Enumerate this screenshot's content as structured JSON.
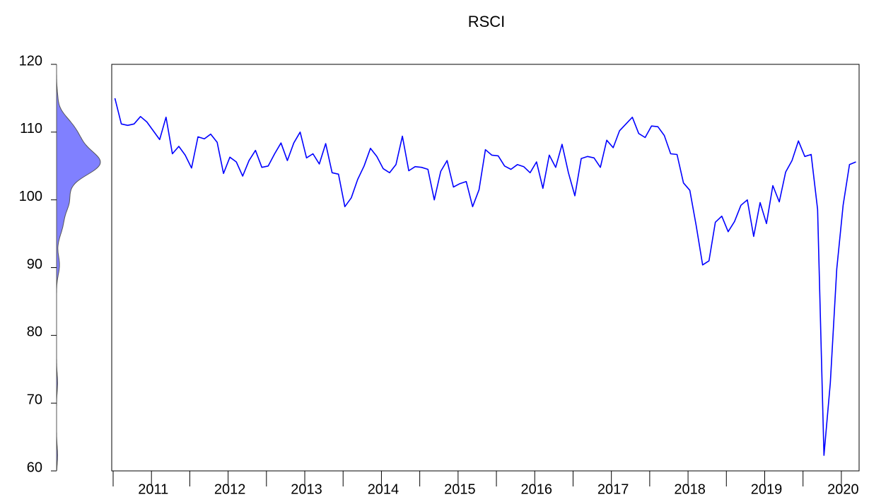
{
  "chart_data": {
    "type": "line",
    "title": "RSCI",
    "categories": [
      null,
      null,
      null,
      null,
      null,
      null,
      "2011",
      null,
      null,
      null,
      null,
      null,
      null,
      null,
      null,
      null,
      null,
      null,
      "2012",
      null,
      null,
      null,
      null,
      null,
      null,
      null,
      null,
      null,
      null,
      null,
      "2013",
      null,
      null,
      null,
      null,
      null,
      null,
      null,
      null,
      null,
      null,
      null,
      "2014",
      null,
      null,
      null,
      null,
      null,
      null,
      null,
      null,
      null,
      null,
      null,
      "2015",
      null,
      null,
      null,
      null,
      null,
      null,
      null,
      null,
      null,
      null,
      null,
      "2016",
      null,
      null,
      null,
      null,
      null,
      null,
      null,
      null,
      null,
      null,
      null,
      "2017",
      null,
      null,
      null,
      null,
      null,
      null,
      null,
      null,
      null,
      null,
      null,
      "2018",
      null,
      null,
      null,
      null,
      null,
      null,
      null,
      null,
      null,
      null,
      null,
      "2019",
      null,
      null,
      null,
      null,
      null,
      null,
      null,
      null,
      null,
      null,
      null,
      "2020",
      null,
      null
    ],
    "series": [
      {
        "name": "RSCI",
        "color": "#0000ff",
        "values": [
          115.0,
          111.2,
          111.0,
          111.2,
          112.3,
          111.5,
          110.2,
          108.9,
          112.2,
          106.8,
          107.9,
          106.6,
          104.7,
          109.3,
          109.0,
          109.7,
          108.5,
          103.9,
          106.3,
          105.6,
          103.5,
          105.8,
          107.3,
          104.8,
          105.0,
          106.8,
          108.4,
          105.8,
          108.4,
          110.0,
          106.2,
          106.8,
          105.3,
          108.3,
          104.0,
          103.8,
          99.0,
          100.3,
          103.0,
          105.0,
          107.6,
          106.4,
          104.6,
          104.0,
          105.2,
          109.4,
          104.3,
          104.9,
          104.8,
          104.5,
          100.0,
          104.2,
          105.8,
          101.9,
          102.4,
          102.7,
          99.0,
          101.5,
          107.4,
          106.6,
          106.5,
          105.0,
          104.5,
          105.2,
          104.9,
          104.0,
          105.6,
          101.7,
          106.6,
          104.8,
          108.2,
          104.0,
          100.6,
          106.1,
          106.4,
          106.2,
          104.8,
          108.8,
          107.7,
          110.2,
          111.2,
          112.2,
          109.8,
          109.2,
          110.9,
          110.8,
          109.5,
          106.8,
          106.7,
          102.5,
          101.4,
          96.2,
          90.4,
          91.0,
          96.7,
          97.6,
          95.3,
          96.8,
          99.2,
          100.0,
          94.6,
          99.6,
          96.5,
          102.1,
          99.7,
          104.1,
          105.8,
          108.7,
          106.4,
          106.7,
          98.6,
          62.3,
          73.0,
          89.8,
          99.2,
          105.2,
          105.6
        ]
      }
    ],
    "ylim": [
      60,
      120
    ],
    "yticks": [
      60,
      70,
      80,
      90,
      100,
      110,
      120
    ],
    "density": {
      "color": "#8080ff"
    }
  }
}
